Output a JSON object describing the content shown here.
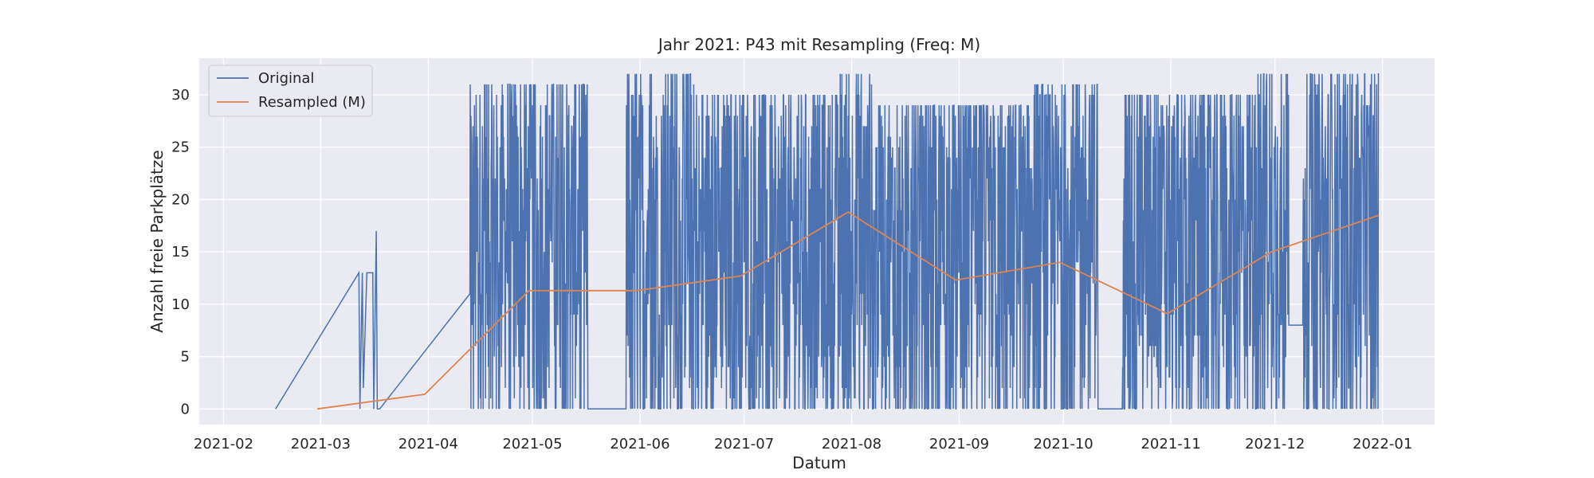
{
  "chart_data": {
    "type": "line",
    "title": "Jahr 2021: P43 mit Resampling (Freq: M)",
    "xlabel": "Datum",
    "ylabel": "Anzahl freie Parkplätze",
    "xlim": [
      "2021-01-25",
      "2022-01-16"
    ],
    "ylim": [
      -1.5,
      33.5
    ],
    "x_ticks": [
      "2021-02-01",
      "2021-03-01",
      "2021-04-01",
      "2021-05-01",
      "2021-06-01",
      "2021-07-01",
      "2021-08-01",
      "2021-09-01",
      "2021-10-01",
      "2021-11-01",
      "2021-12-01",
      "2022-01-01"
    ],
    "x_tick_labels": [
      "2021-02",
      "2021-03",
      "2021-04",
      "2021-05",
      "2021-06",
      "2021-07",
      "2021-08",
      "2021-09",
      "2021-10",
      "2021-11",
      "2021-12",
      "2022-01"
    ],
    "y_ticks": [
      0,
      5,
      10,
      15,
      20,
      25,
      30
    ],
    "grid": true,
    "legend_position": "top-left",
    "colors": {
      "original": "#4c72b0",
      "resampled": "#dd8452"
    },
    "series": [
      {
        "name": "Original",
        "note_fidelity": "dense hourly series; main features recorded, dense oscillation approximated",
        "x": [
          "2021-02-16",
          "2021-03-12",
          "2021-03-12",
          "2021-03-13",
          "2021-03-13",
          "2021-03-14",
          "2021-03-16",
          "2021-03-16",
          "2021-03-17",
          "2021-03-17",
          "2021-03-18",
          "2021-04-13"
        ],
        "y": [
          0,
          0,
          13,
          2,
          13,
          13,
          13,
          0,
          17,
          0,
          0,
          0
        ],
        "dense_segments": [
          {
            "start": "2021-04-13",
            "end": "2021-05-17",
            "min": 0,
            "max": 31
          },
          {
            "start": "2021-05-28",
            "end": "2021-06-17",
            "min": 0,
            "max": 32
          },
          {
            "start": "2021-06-17",
            "end": "2021-07-28",
            "min": 0,
            "max": 30
          },
          {
            "start": "2021-07-28",
            "end": "2021-08-08",
            "min": 0,
            "max": 32
          },
          {
            "start": "2021-08-08",
            "end": "2021-09-22",
            "min": 0,
            "max": 29
          },
          {
            "start": "2021-09-22",
            "end": "2021-10-11",
            "min": 0,
            "max": 31
          },
          {
            "start": "2021-10-18",
            "end": "2021-11-26",
            "min": 0,
            "max": 30
          },
          {
            "start": "2021-11-26",
            "end": "2021-12-31",
            "min": 0,
            "max": 32
          }
        ],
        "flat_segments": [
          {
            "start": "2021-05-17",
            "end": "2021-05-28",
            "y": 0
          },
          {
            "start": "2021-10-11",
            "end": "2021-10-18",
            "y": 0
          },
          {
            "start": "2021-12-05",
            "end": "2021-12-09",
            "y": 8
          }
        ]
      },
      {
        "name": "Resampled (M)",
        "x": [
          "2021-02-28",
          "2021-03-31",
          "2021-04-30",
          "2021-05-31",
          "2021-06-30",
          "2021-07-31",
          "2021-08-31",
          "2021-09-30",
          "2021-10-31",
          "2021-11-30",
          "2021-12-31"
        ],
        "y": [
          0.0,
          1.4,
          11.3,
          11.3,
          12.7,
          18.8,
          12.3,
          14.0,
          9.1,
          15.0,
          18.5
        ]
      }
    ]
  }
}
